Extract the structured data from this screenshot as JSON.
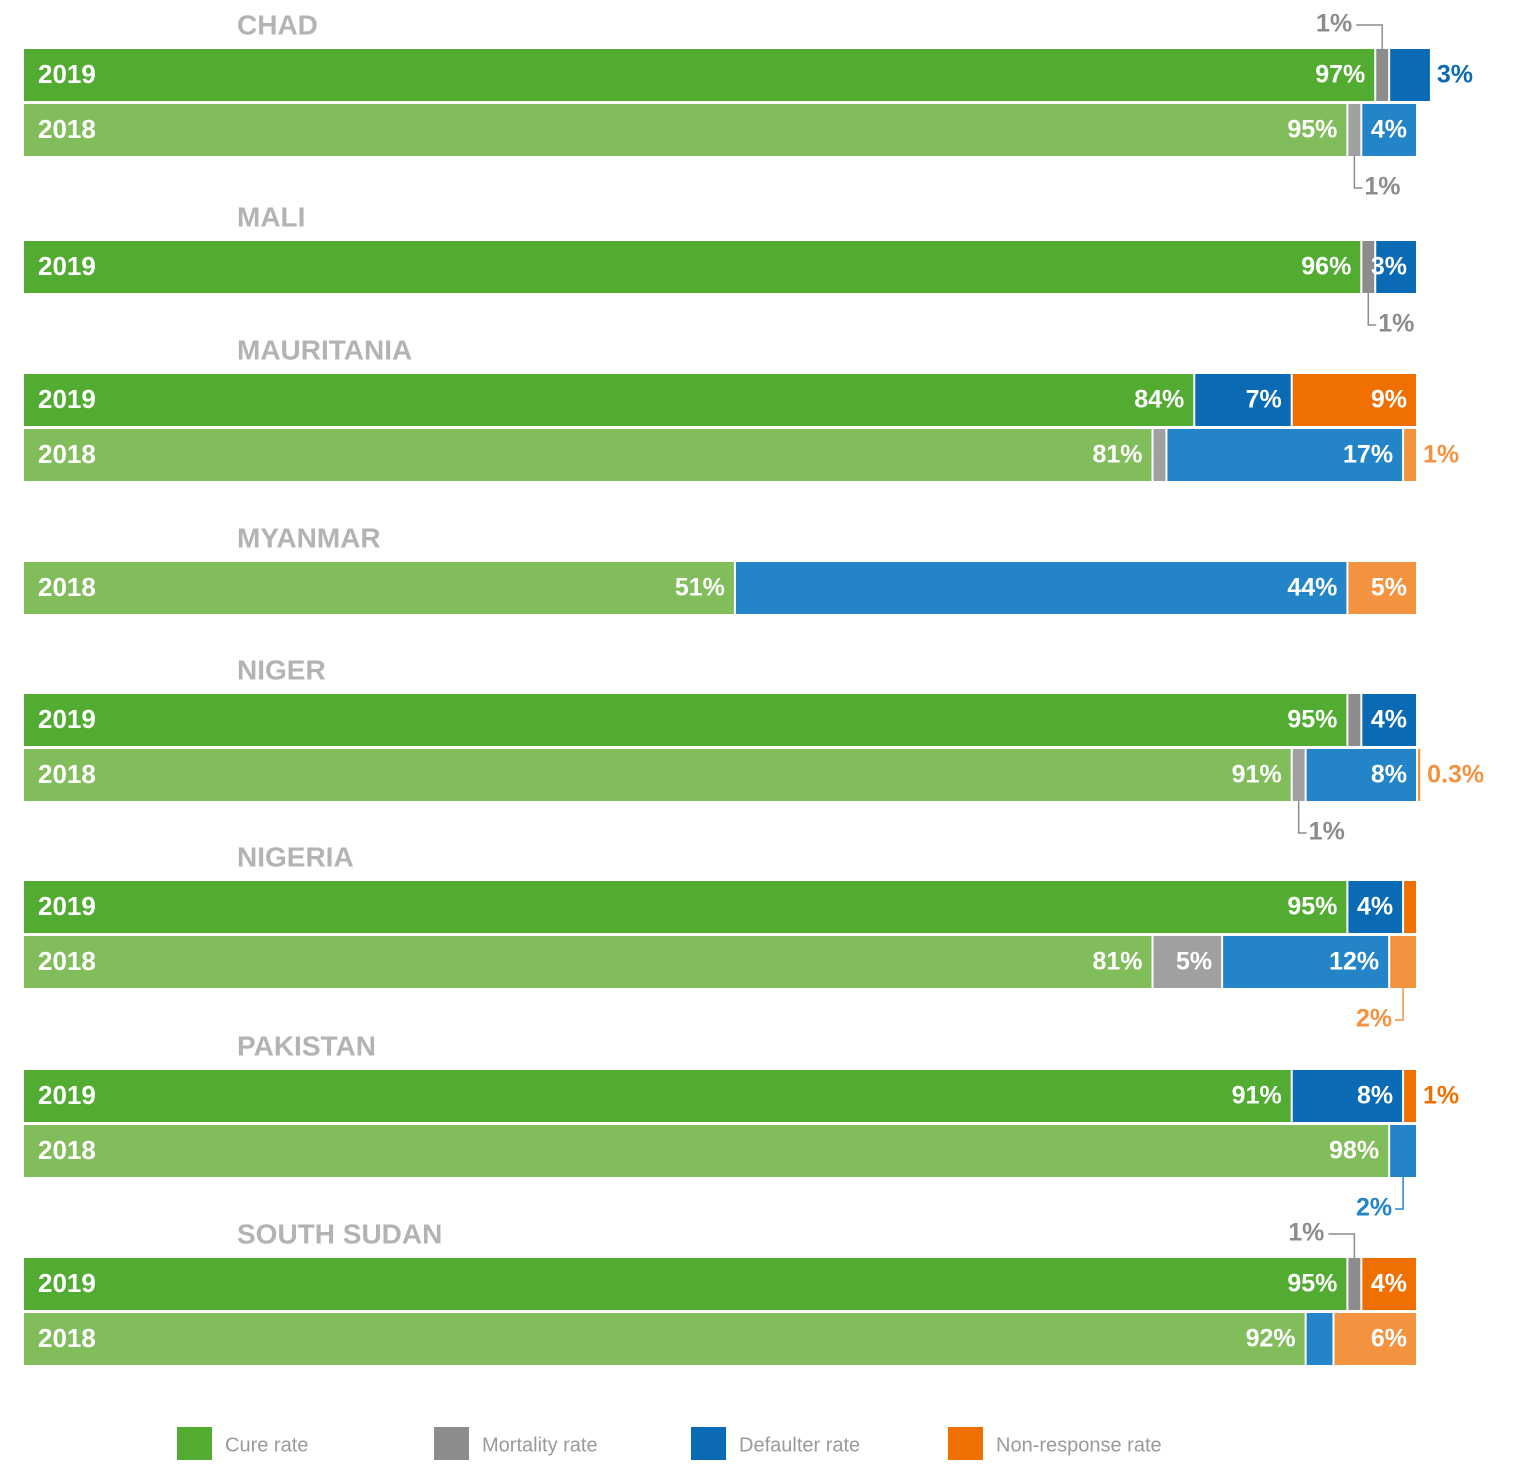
{
  "chart_data": {
    "type": "stacked-bar",
    "orientation": "horizontal",
    "xlim": [
      0,
      100
    ],
    "series": [
      {
        "name": "Cure rate",
        "color": "#52ac32"
      },
      {
        "name": "Mortality rate",
        "color": "#8c8c8c"
      },
      {
        "name": "Defaulter rate",
        "color": "#0a6ab4"
      },
      {
        "name": "Non-response rate",
        "color": "#ef7000"
      }
    ],
    "year_colors": {
      "2019": [
        "#52ac32",
        "#8c8c8c",
        "#0a6ab4",
        "#ef7000"
      ],
      "2018": [
        "#82bd5b",
        "#a0a0a0",
        "#2385c8",
        "#f39340"
      ]
    },
    "groups": [
      {
        "name": "CHAD",
        "rows": [
          {
            "label": "2019",
            "values": [
              97,
              1,
              3,
              null
            ],
            "value_labels": [
              "97%",
              "1%",
              "3%",
              null
            ]
          },
          {
            "label": "2018",
            "values": [
              95,
              1,
              4,
              null
            ],
            "value_labels": [
              "95%",
              "1%",
              "4%",
              null
            ]
          }
        ]
      },
      {
        "name": "MALI",
        "rows": [
          {
            "label": "2019",
            "values": [
              96,
              1,
              3,
              null
            ],
            "value_labels": [
              "96%",
              "1%",
              "3%",
              null
            ]
          }
        ]
      },
      {
        "name": "MAURITANIA",
        "rows": [
          {
            "label": "2019",
            "values": [
              84,
              null,
              7,
              9
            ],
            "value_labels": [
              "84%",
              null,
              "7%",
              "9%"
            ]
          },
          {
            "label": "2018",
            "values": [
              81,
              1,
              17,
              1
            ],
            "value_labels": [
              "81%",
              null,
              "17%",
              "1%"
            ]
          }
        ]
      },
      {
        "name": "MYANMAR",
        "rows": [
          {
            "label": "2018",
            "values": [
              51,
              null,
              44,
              5
            ],
            "value_labels": [
              "51%",
              null,
              "44%",
              "5%"
            ]
          }
        ]
      },
      {
        "name": "NIGER",
        "rows": [
          {
            "label": "2019",
            "values": [
              95,
              1,
              4,
              null
            ],
            "value_labels": [
              "95%",
              null,
              "4%",
              null
            ]
          },
          {
            "label": "2018",
            "values": [
              91,
              1,
              8,
              0.3
            ],
            "value_labels": [
              "91%",
              "1%",
              "8%",
              "0.3%"
            ]
          }
        ]
      },
      {
        "name": "NIGERIA",
        "rows": [
          {
            "label": "2019",
            "values": [
              95,
              null,
              4,
              1
            ],
            "value_labels": [
              "95%",
              null,
              "4%",
              null
            ]
          },
          {
            "label": "2018",
            "values": [
              81,
              5,
              12,
              2
            ],
            "value_labels": [
              "81%",
              "5%",
              "12%",
              "2%"
            ]
          }
        ]
      },
      {
        "name": "PAKISTAN",
        "rows": [
          {
            "label": "2019",
            "values": [
              91,
              null,
              8,
              1
            ],
            "value_labels": [
              "91%",
              null,
              "8%",
              "1%"
            ]
          },
          {
            "label": "2018",
            "values": [
              98,
              null,
              2,
              null
            ],
            "value_labels": [
              "98%",
              null,
              "2%",
              null
            ]
          }
        ]
      },
      {
        "name": "SOUTH SUDAN",
        "rows": [
          {
            "label": "2019",
            "values": [
              95,
              1,
              null,
              4
            ],
            "value_labels": [
              "95%",
              "1%",
              null,
              "4%"
            ]
          },
          {
            "label": "2018",
            "values": [
              92,
              null,
              2,
              6
            ],
            "value_labels": [
              "92%",
              null,
              null,
              "6%"
            ]
          }
        ]
      }
    ]
  }
}
